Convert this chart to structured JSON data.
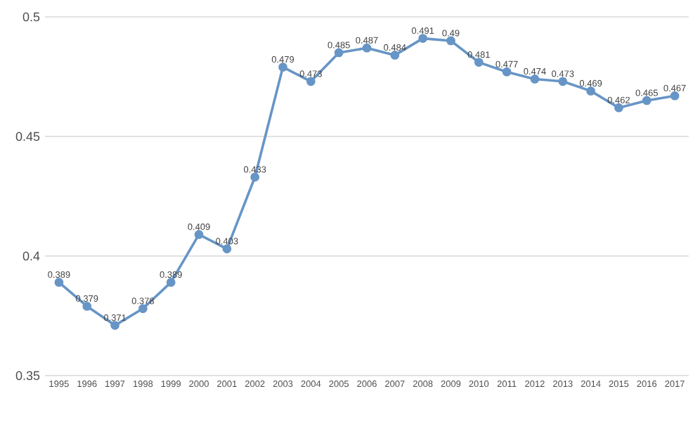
{
  "chart_data": {
    "type": "line",
    "categories": [
      "1995",
      "1996",
      "1997",
      "1998",
      "1999",
      "2000",
      "2001",
      "2002",
      "2003",
      "2004",
      "2005",
      "2006",
      "2007",
      "2008",
      "2009",
      "2010",
      "2011",
      "2012",
      "2013",
      "2014",
      "2015",
      "2016",
      "2017"
    ],
    "values": [
      0.389,
      0.379,
      0.371,
      0.378,
      0.389,
      0.409,
      0.403,
      0.433,
      0.479,
      0.473,
      0.485,
      0.487,
      0.484,
      0.491,
      0.49,
      0.481,
      0.477,
      0.474,
      0.473,
      0.469,
      0.462,
      0.465,
      0.467
    ],
    "color": "#6795c6",
    "ylim": [
      0.35,
      0.5
    ],
    "yticks": [
      0.35,
      0.4,
      0.45,
      0.5
    ],
    "grid": "y",
    "marker": "circle",
    "line_style": "solid",
    "data_labels": true
  }
}
